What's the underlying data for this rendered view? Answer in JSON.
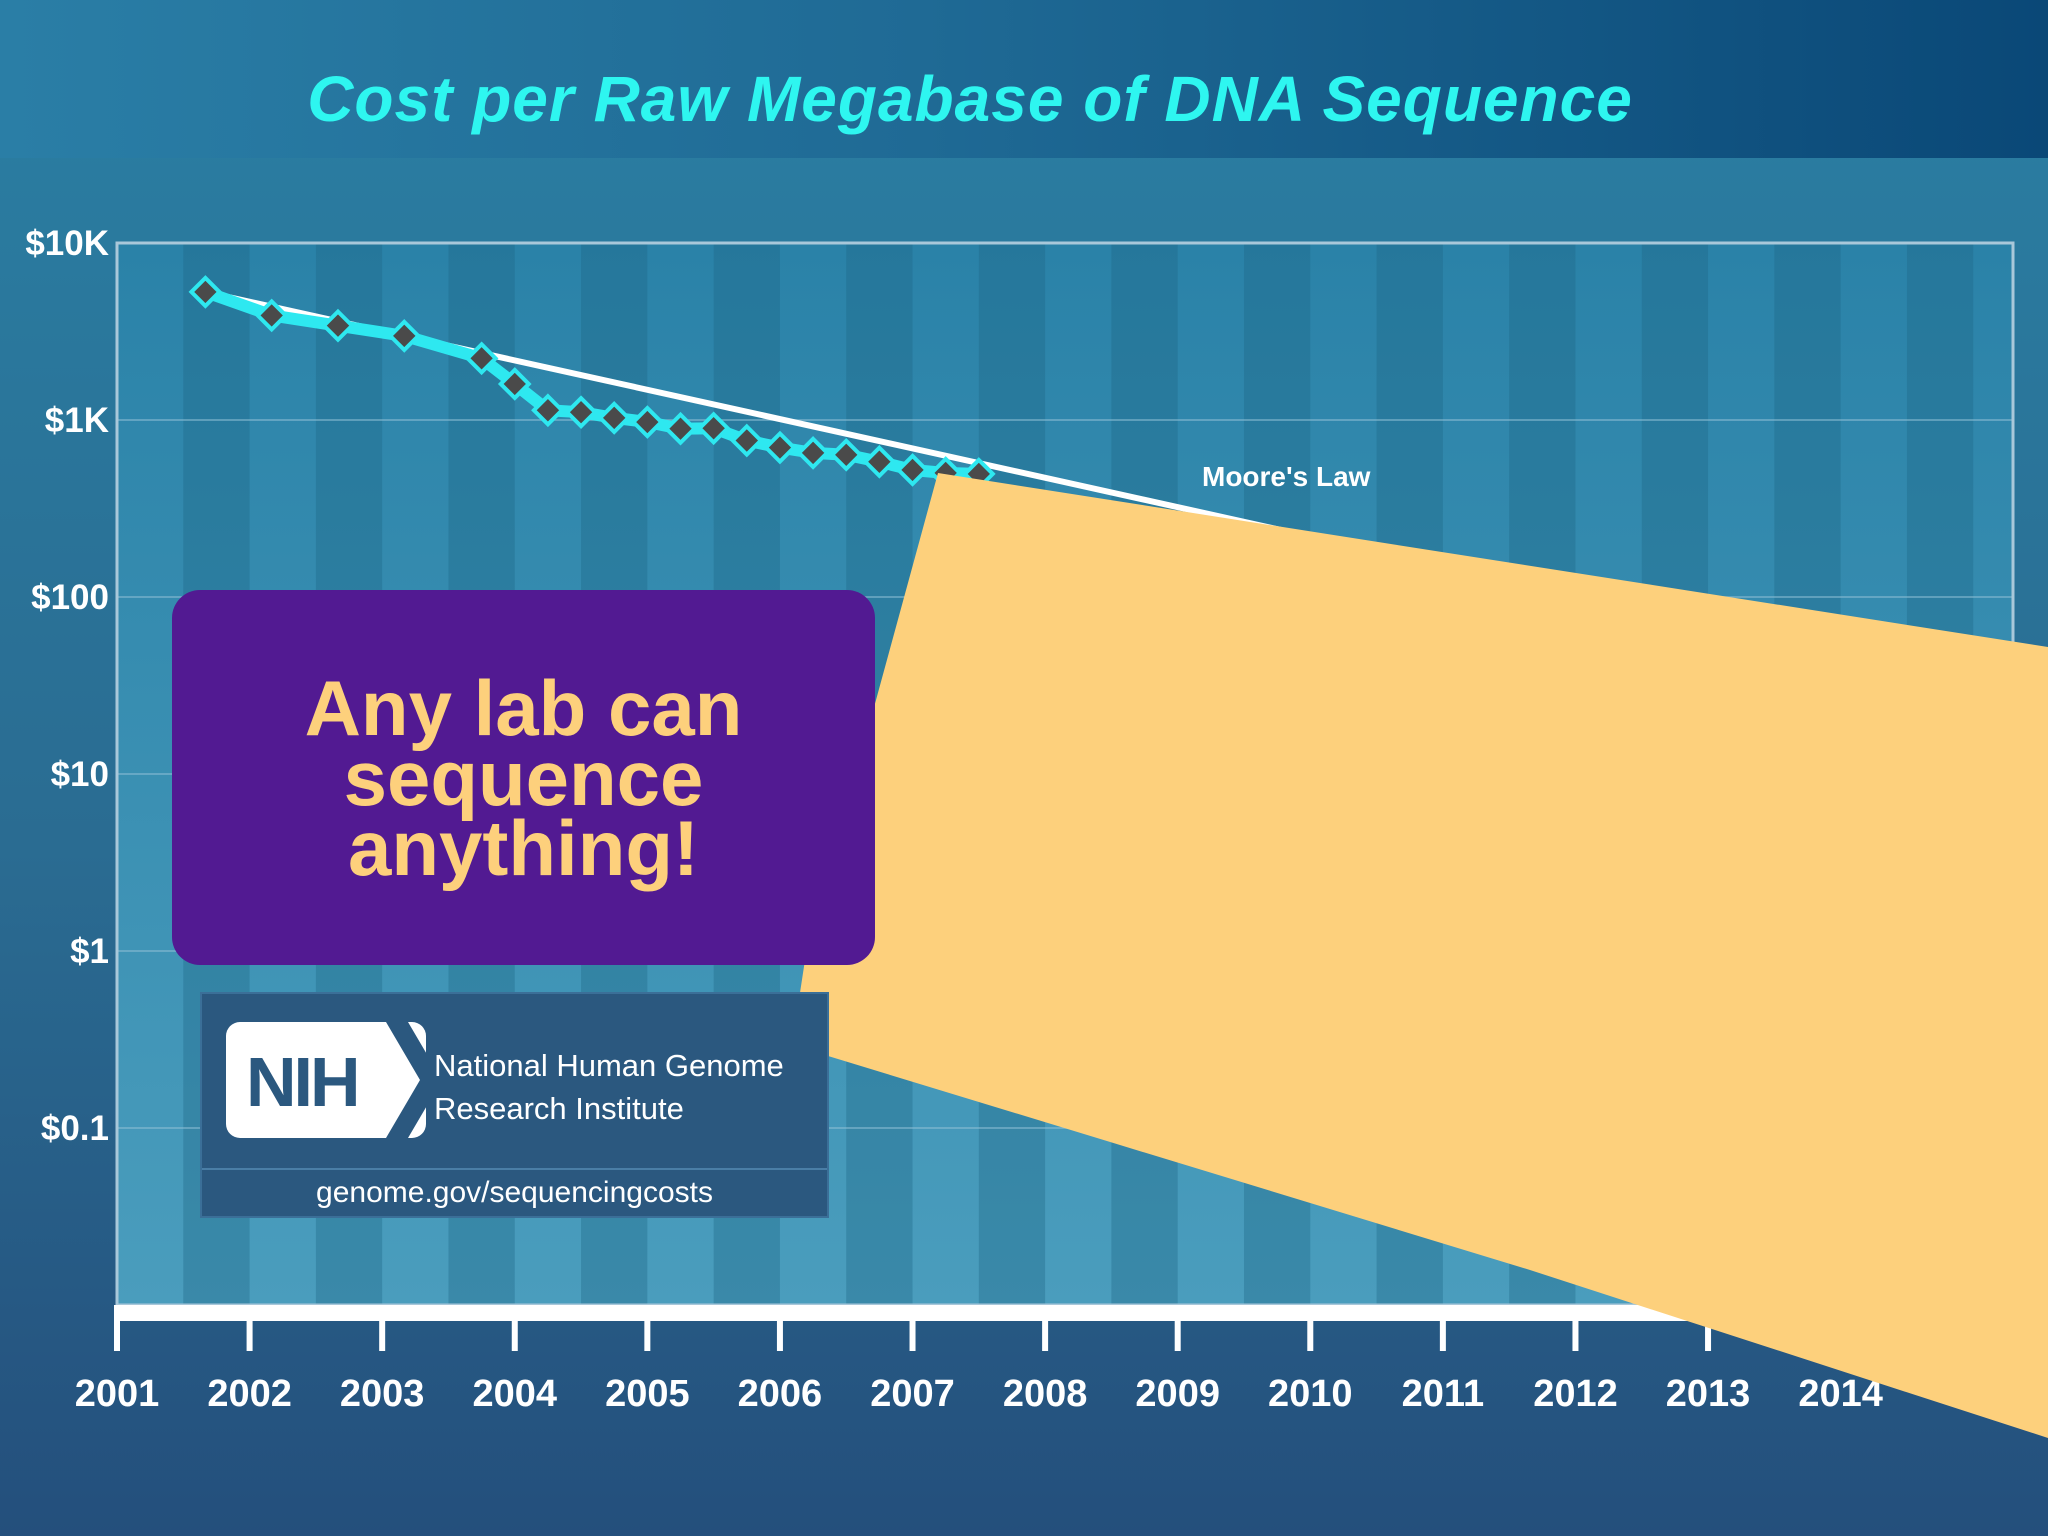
{
  "chart_data": {
    "type": "line",
    "title": "Cost per Raw Megabase of DNA Sequence",
    "y_scale": "log",
    "ylim": [
      0.01,
      10000
    ],
    "y_ticks": [
      {
        "value": 10000,
        "label": "$10K"
      },
      {
        "value": 1000,
        "label": "$1K"
      },
      {
        "value": 100,
        "label": "$100"
      },
      {
        "value": 10,
        "label": "$10"
      },
      {
        "value": 1,
        "label": "$1"
      },
      {
        "value": 0.1,
        "label": "$0.1"
      }
    ],
    "x_ticks": [
      "2001",
      "2002",
      "2003",
      "2004",
      "2005",
      "2006",
      "2007",
      "2008",
      "2009",
      "2010",
      "2011",
      "2012",
      "2013",
      "2014"
    ],
    "grid": true,
    "series": [
      {
        "name": "",
        "color": "#2ee8f0",
        "marker": "diamond",
        "points": [
          [
            "2001-09",
            5292
          ],
          [
            "2002-03",
            3899
          ],
          [
            "2002-09",
            3413
          ],
          [
            "2003-03",
            2987
          ],
          [
            "2003-10",
            2230
          ],
          [
            "2004-01",
            1598
          ],
          [
            "2004-04",
            1135
          ],
          [
            "2004-07",
            1107
          ],
          [
            "2004-10",
            1028
          ],
          [
            "2005-01",
            974
          ],
          [
            "2005-04",
            893
          ],
          [
            "2005-07",
            898
          ],
          [
            "2005-10",
            766
          ],
          [
            "2006-01",
            699
          ],
          [
            "2006-04",
            652
          ],
          [
            "2006-07",
            636
          ],
          [
            "2006-10",
            581
          ],
          [
            "2007-01",
            522
          ],
          [
            "2007-04",
            502
          ],
          [
            "2007-07",
            496
          ]
        ]
      },
      {
        "name": "Moore's Law",
        "color": "#ffffff",
        "points": [
          [
            "2001-09",
            5292
          ],
          [
            "2011-01",
            150
          ]
        ]
      }
    ]
  },
  "callout": {
    "text": "Any lab can sequence anything!"
  },
  "nih": {
    "logo_text": "NIH",
    "name_line1": "National Human Genome",
    "name_line2": "Research Institute",
    "url": "genome.gov/sequencingcosts"
  },
  "colors": {
    "title": "#2ef6f0",
    "callout_bg": "#521a92",
    "callout_text": "#fdd07c",
    "overlay_shape": "#fdd07c"
  }
}
